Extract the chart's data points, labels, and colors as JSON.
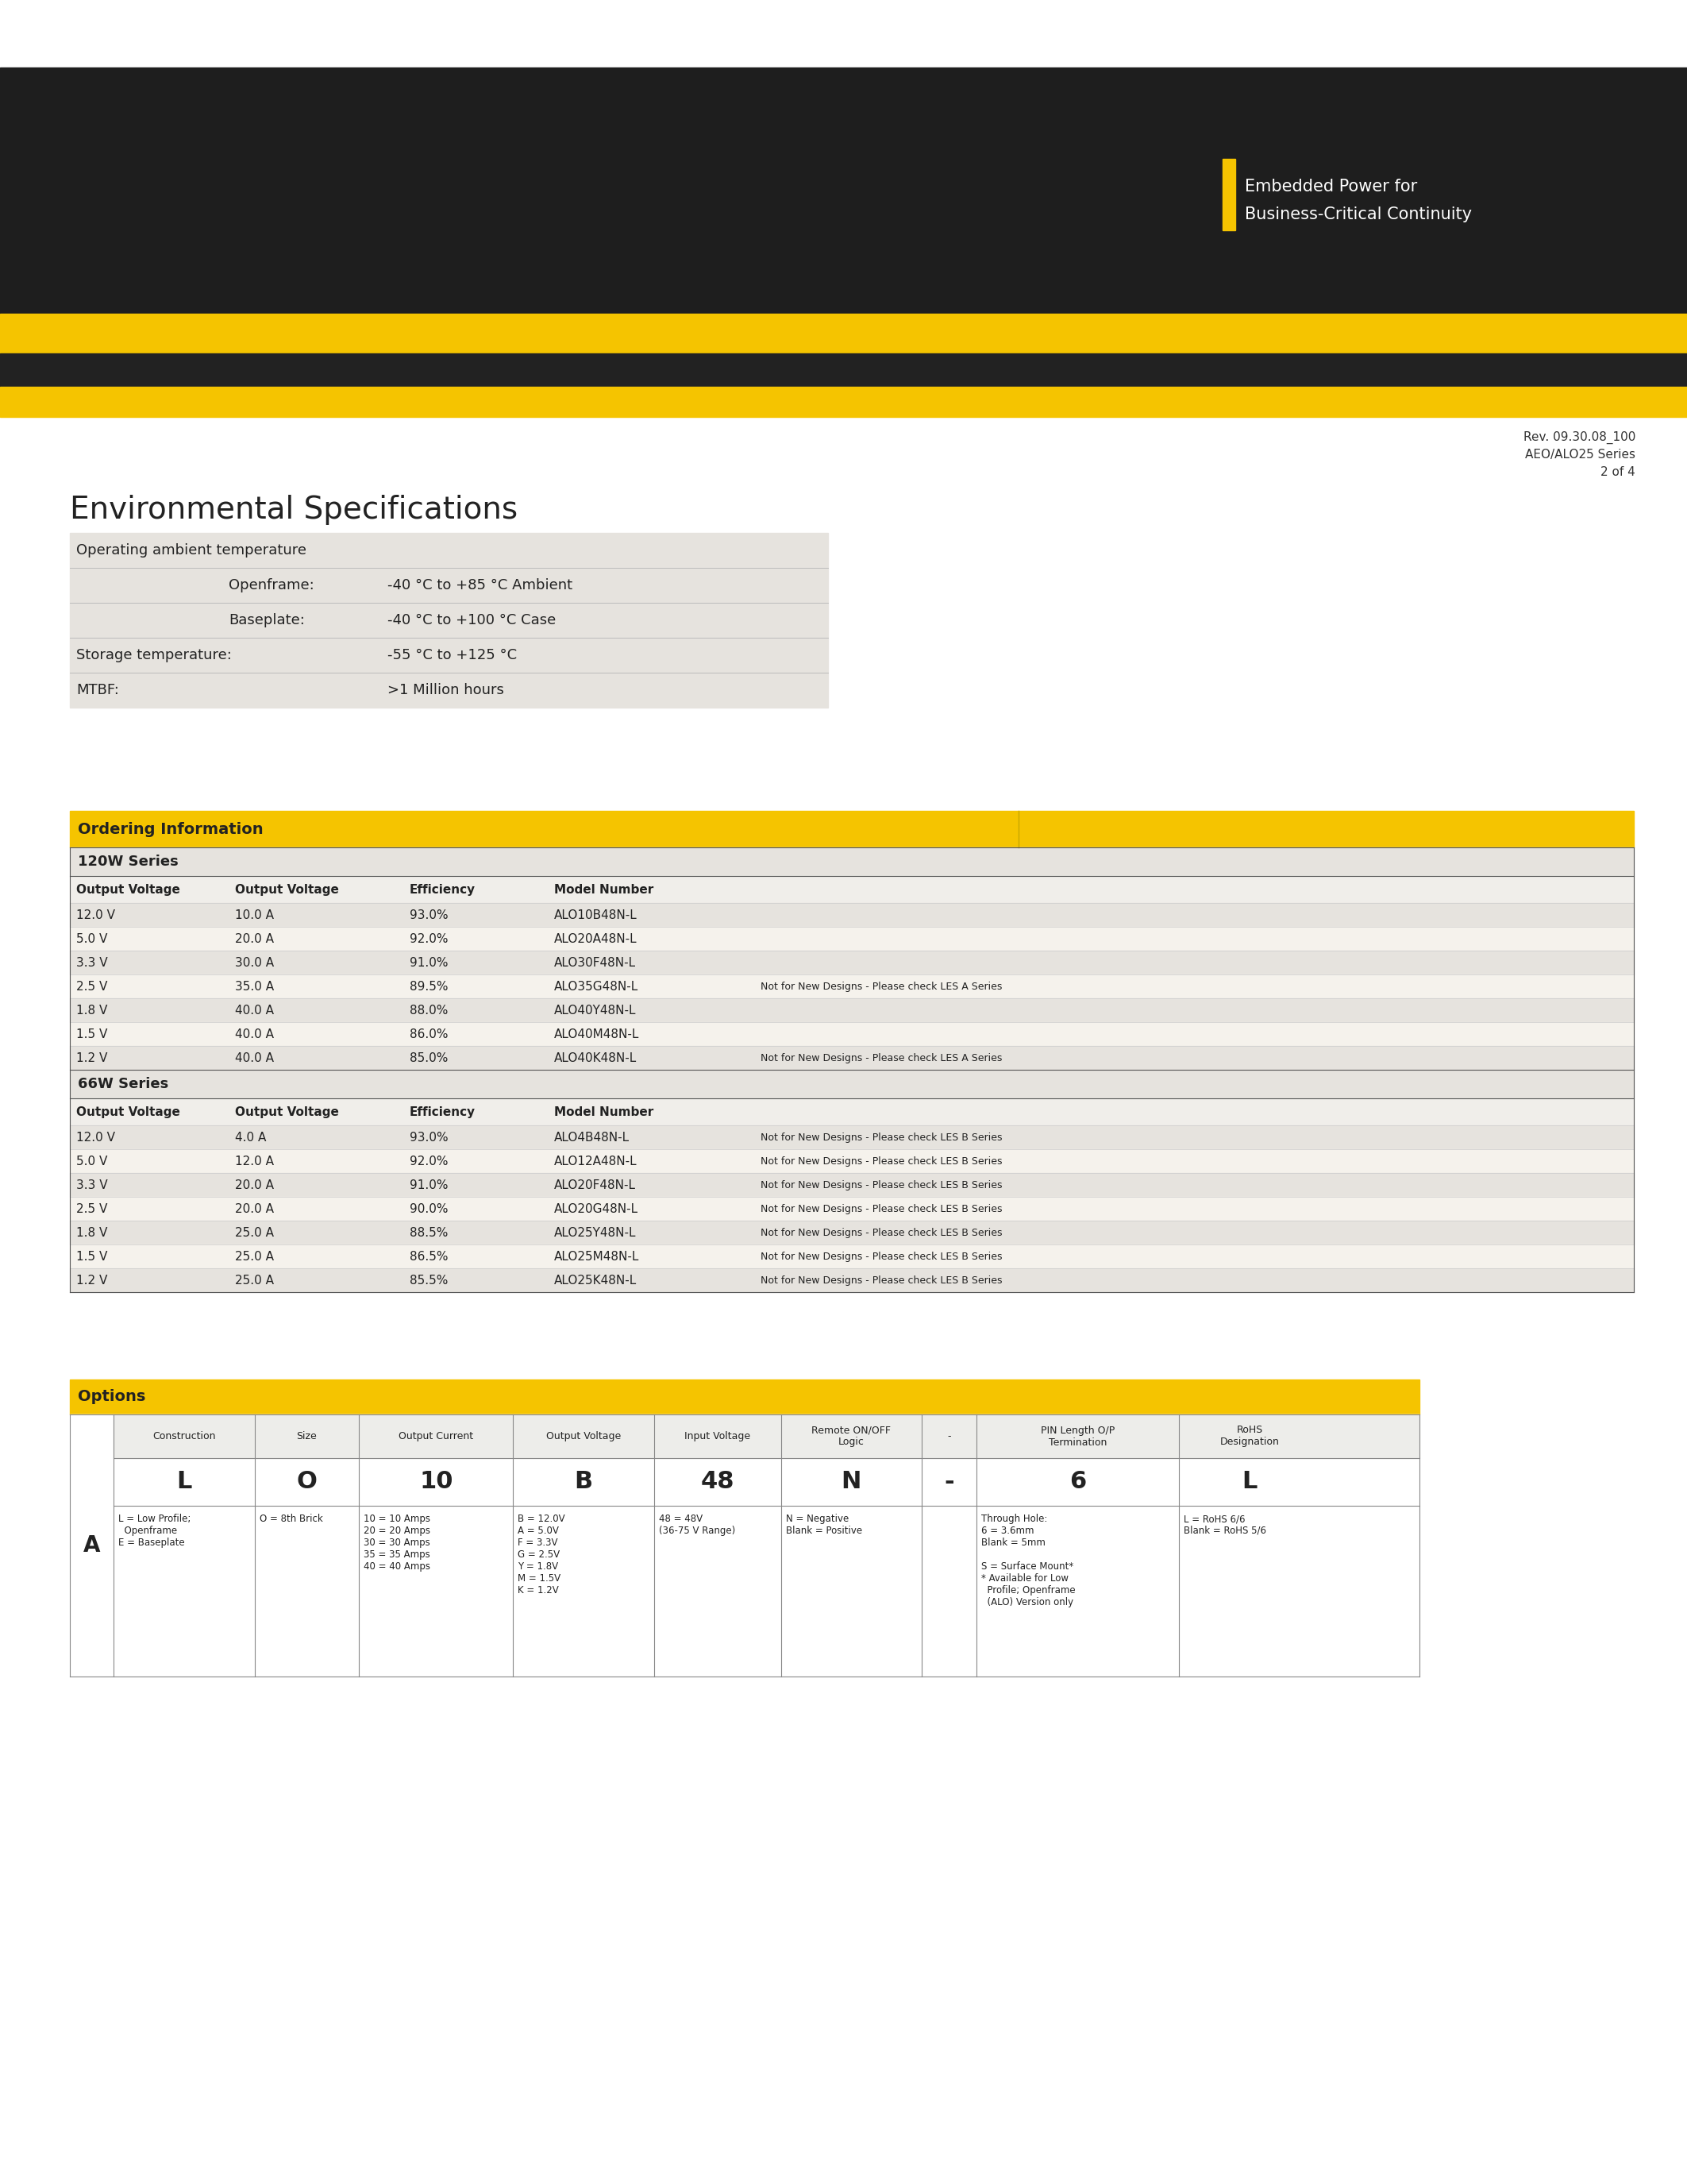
{
  "page_bg": "#ffffff",
  "header_bg": "#1e1e1e",
  "yellow_color": "#f5c400",
  "dark_bar_color": "#222222",
  "logo_text1": "Embedded Power for",
  "logo_text2": "Business-Critical Continuity",
  "logo_rect_color": "#f5c400",
  "rev_line1": "Rev. 09.30.08_100",
  "rev_line2": "AEO/ALO25 Series",
  "rev_line3": "2 of 4",
  "env_title": "Environmental Specifications",
  "env_table_bg": "#e6e3de",
  "env_rows": [
    {
      "label": "Operating ambient temperature",
      "value": "",
      "indent": false
    },
    {
      "label": "Openframe:",
      "value": "-40 °C to +85 °C Ambient",
      "indent": true
    },
    {
      "label": "Baseplate:",
      "value": "-40 °C to +100 °C Case",
      "indent": true
    },
    {
      "label": "Storage temperature:",
      "value": "-55 °C to +125 °C",
      "indent": false
    },
    {
      "label": "MTBF:",
      "value": ">1 Million hours",
      "indent": false
    }
  ],
  "ordering_title": "Ordering Information",
  "ordering_header_bg": "#f5c400",
  "ordering_table_bg": "#e6e3de",
  "series_120w": "120W Series",
  "series_66w": "66W Series",
  "col_headers": [
    "Output Voltage",
    "Output Voltage",
    "Efficiency",
    "Model Number"
  ],
  "rows_120w": [
    [
      "12.0 V",
      "10.0 A",
      "93.0%",
      "ALO10B48N-L",
      ""
    ],
    [
      "5.0 V",
      "20.0 A",
      "92.0%",
      "ALO20A48N-L",
      ""
    ],
    [
      "3.3 V",
      "30.0 A",
      "91.0%",
      "ALO30F48N-L",
      ""
    ],
    [
      "2.5 V",
      "35.0 A",
      "89.5%",
      "ALO35G48N-L",
      "Not for New Designs - Please check LES A Series"
    ],
    [
      "1.8 V",
      "40.0 A",
      "88.0%",
      "ALO40Y48N-L",
      ""
    ],
    [
      "1.5 V",
      "40.0 A",
      "86.0%",
      "ALO40M48N-L",
      ""
    ],
    [
      "1.2 V",
      "40.0 A",
      "85.0%",
      "ALO40K48N-L",
      "Not for New Designs - Please check LES A Series"
    ]
  ],
  "rows_66w": [
    [
      "12.0 V",
      "4.0 A",
      "93.0%",
      "ALO4B48N-L",
      "Not for New Designs - Please check LES B Series"
    ],
    [
      "5.0 V",
      "12.0 A",
      "92.0%",
      "ALO12A48N-L",
      "Not for New Designs - Please check LES B Series"
    ],
    [
      "3.3 V",
      "20.0 A",
      "91.0%",
      "ALO20F48N-L",
      "Not for New Designs - Please check LES B Series"
    ],
    [
      "2.5 V",
      "20.0 A",
      "90.0%",
      "ALO20G48N-L",
      "Not for New Designs - Please check LES B Series"
    ],
    [
      "1.8 V",
      "25.0 A",
      "88.5%",
      "ALO25Y48N-L",
      "Not for New Designs - Please check LES B Series"
    ],
    [
      "1.5 V",
      "25.0 A",
      "86.5%",
      "ALO25M48N-L",
      "Not for New Designs - Please check LES B Series"
    ],
    [
      "1.2 V",
      "25.0 A",
      "85.5%",
      "ALO25K48N-L",
      "Not for New Designs - Please check LES B Series"
    ]
  ],
  "options_title": "Options",
  "options_header_bg": "#f5c400",
  "options_col_headers": [
    "Construction",
    "Size",
    "Output Current",
    "Output Voltage",
    "Input Voltage",
    "Remote ON/OFF\nLogic",
    "-",
    "PIN Length O/P\nTermination",
    "RoHS\nDesignation"
  ],
  "options_letter": "A",
  "options_values": [
    "L",
    "O",
    "10",
    "B",
    "48",
    "N",
    "-",
    "6",
    "L"
  ],
  "options_desc": [
    "L = Low Profile;\n  Openframe\nE = Baseplate",
    "O = 8th Brick",
    "10 = 10 Amps\n20 = 20 Amps\n30 = 30 Amps\n35 = 35 Amps\n40 = 40 Amps",
    "B = 12.0V\nA = 5.0V\nF = 3.3V\nG = 2.5V\nY = 1.8V\nM = 1.5V\nK = 1.2V",
    "48 = 48V\n(36-75 V Range)",
    "N = Negative\nBlank = Positive",
    "",
    "Through Hole:\n6 = 3.6mm\nBlank = 5mm\n\nS = Surface Mount*\n* Available for Low\n  Profile; Openframe\n  (ALO) Version only",
    "L = RoHS 6/6\nBlank = RoHS 5/6"
  ]
}
